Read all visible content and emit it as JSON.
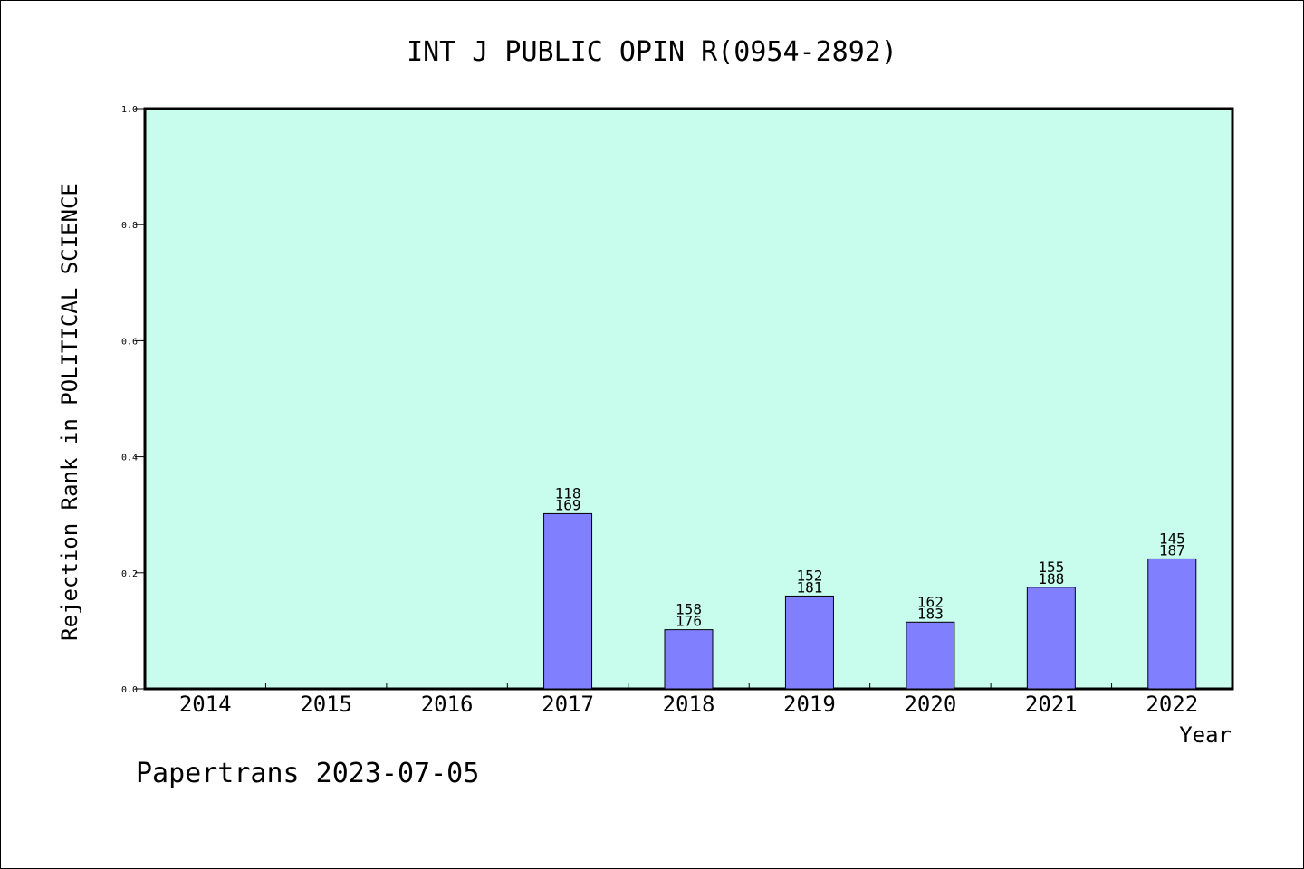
{
  "chart_data": {
    "type": "bar",
    "title": "INT J PUBLIC OPIN R(0954-2892)",
    "xlabel": "Year",
    "ylabel": "Rejection Rank in POLITICAL SCIENCE",
    "footer": "Papertrans 2023-07-05",
    "ylim": [
      0,
      1.0
    ],
    "yticks": [
      "0.0",
      "0.2",
      "0.4",
      "0.6",
      "0.8",
      "1.0"
    ],
    "categories": [
      "2014",
      "2015",
      "2016",
      "2017",
      "2018",
      "2019",
      "2020",
      "2021",
      "2022"
    ],
    "values": [
      null,
      null,
      null,
      0.302,
      0.102,
      0.16,
      0.115,
      0.175,
      0.224
    ],
    "label_top": [
      null,
      null,
      null,
      "118",
      "158",
      "152",
      "162",
      "155",
      "145"
    ],
    "label_bottom": [
      null,
      null,
      null,
      "169",
      "176",
      "181",
      "183",
      "188",
      "187"
    ],
    "grid": false,
    "colors": {
      "plot_background": "#c8fdee",
      "bar_fill": "#8080ff",
      "bar_stroke": "#000000"
    }
  }
}
